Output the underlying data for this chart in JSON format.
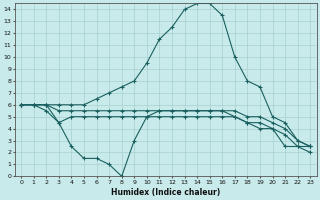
{
  "xlabel": "Humidex (Indice chaleur)",
  "bg_color": "#c8eaea",
  "grid_color": "#a8d0d0",
  "line_color": "#1a6060",
  "xlim": [
    -0.5,
    23.5
  ],
  "ylim": [
    0,
    14.5
  ],
  "xticks": [
    0,
    1,
    2,
    3,
    4,
    5,
    6,
    7,
    8,
    9,
    10,
    11,
    12,
    13,
    14,
    15,
    16,
    17,
    18,
    19,
    20,
    21,
    22,
    23
  ],
  "yticks": [
    0,
    1,
    2,
    3,
    4,
    5,
    6,
    7,
    8,
    9,
    10,
    11,
    12,
    13,
    14
  ],
  "line1_x": [
    0,
    1,
    2,
    3,
    4,
    5,
    6,
    7,
    8,
    9,
    10,
    11,
    12,
    13,
    14,
    15,
    16,
    17,
    18,
    19,
    20,
    21,
    22,
    23
  ],
  "line1_y": [
    6.0,
    6.0,
    6.0,
    6.0,
    6.0,
    6.0,
    6.5,
    7.0,
    7.5,
    8.0,
    9.5,
    11.5,
    12.5,
    14.0,
    14.5,
    14.5,
    13.5,
    10.0,
    8.0,
    7.5,
    5.0,
    4.5,
    3.0,
    2.5
  ],
  "line2_x": [
    0,
    1,
    2,
    3,
    4,
    5,
    6,
    7,
    8,
    9,
    10,
    11,
    12,
    13,
    14,
    15,
    16,
    17,
    18,
    19,
    20,
    21,
    22,
    23
  ],
  "line2_y": [
    6.0,
    6.0,
    6.0,
    5.5,
    5.5,
    5.5,
    5.5,
    5.5,
    5.5,
    5.5,
    5.5,
    5.5,
    5.5,
    5.5,
    5.5,
    5.5,
    5.5,
    5.5,
    5.0,
    5.0,
    4.5,
    4.0,
    3.0,
    2.5
  ],
  "line3_x": [
    0,
    1,
    2,
    3,
    4,
    5,
    6,
    7,
    8,
    9,
    10,
    11,
    12,
    13,
    14,
    15,
    16,
    17,
    18,
    19,
    20,
    21,
    22,
    23
  ],
  "line3_y": [
    6.0,
    6.0,
    5.5,
    4.5,
    5.0,
    5.0,
    5.0,
    5.0,
    5.0,
    5.0,
    5.0,
    5.0,
    5.0,
    5.0,
    5.0,
    5.0,
    5.0,
    5.0,
    4.5,
    4.5,
    4.0,
    3.5,
    2.5,
    2.5
  ],
  "line4_x": [
    0,
    1,
    2,
    3,
    4,
    5,
    6,
    7,
    8,
    9,
    10,
    11,
    12,
    13,
    14,
    15,
    16,
    17,
    18,
    19,
    20,
    21,
    22,
    23
  ],
  "line4_y": [
    6.0,
    6.0,
    6.0,
    4.5,
    2.5,
    1.5,
    1.5,
    1.0,
    0.0,
    3.0,
    5.0,
    5.5,
    5.5,
    5.5,
    5.5,
    5.5,
    5.5,
    5.0,
    4.5,
    4.0,
    4.0,
    2.5,
    2.5,
    2.0
  ]
}
